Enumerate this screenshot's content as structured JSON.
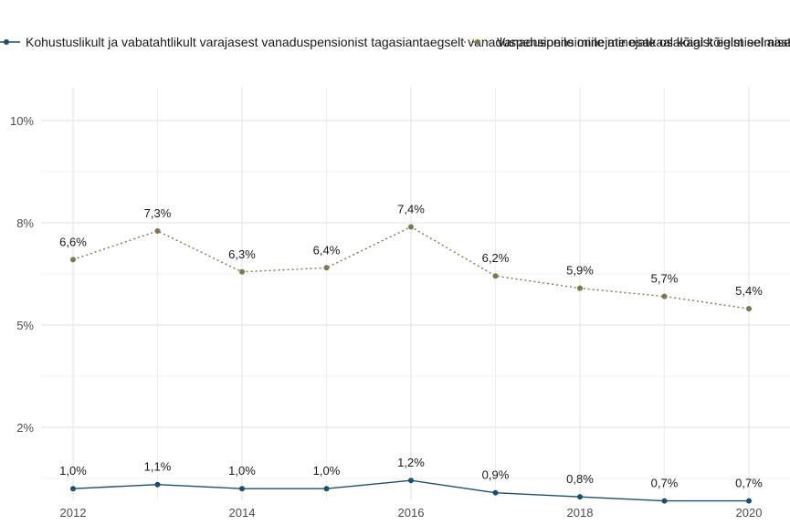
{
  "legend": {
    "series1_label": "Kohustuslikult ja vabatahtlikult varajasest vanaduspensionist tagasiantaegselt vanaduspensionile minejate osakaal kõigist eelmisel aastal VTI-dest",
    "series2_label": "Vanaduspensionile minejate osakaal kõigist eelmisel aastal VTI-dest"
  },
  "colors": {
    "series1": "#1f4e6b",
    "series2": "#7a7a4e",
    "grid": "#ebebeb"
  },
  "chart_data": {
    "type": "line",
    "title": "",
    "xlabel": "",
    "ylabel": "",
    "x": [
      2012,
      2013,
      2014,
      2015,
      2016,
      2017,
      2018,
      2019,
      2020
    ],
    "x_ticks": [
      2012,
      2014,
      2016,
      2018,
      2020
    ],
    "x_tick_labels": [
      "2012",
      "2014",
      "2016",
      "2018",
      "2020"
    ],
    "ylim": [
      0,
      10.5
    ],
    "y_ticks": [
      2.5,
      5,
      7.5,
      10
    ],
    "y_tick_labels": [
      "2%",
      "5%",
      "8%",
      "10%"
    ],
    "grid": true,
    "legend_position": "top",
    "series": [
      {
        "name": "Kohustuslikult ja vabatahtlikult varajasest vanaduspensionist tagasiantaegselt vanaduspensionile minejate osakaal kõigist eelmisel aastal VTI-dest",
        "style": "solid",
        "values": [
          1.0,
          1.1,
          1.0,
          1.0,
          1.2,
          0.9,
          0.8,
          0.7,
          0.7
        ],
        "labels": [
          "1,0%",
          "1,1%",
          "1,0%",
          "1,0%",
          "1,2%",
          "0,9%",
          "0,8%",
          "0,7%",
          "0,7%"
        ]
      },
      {
        "name": "Vanaduspensionile minejate osakaal kõigist eelmisel aastal VTI-dest",
        "style": "dotted",
        "values": [
          6.6,
          7.3,
          6.3,
          6.4,
          7.4,
          6.2,
          5.9,
          5.7,
          5.4
        ],
        "labels": [
          "6,6%",
          "7,3%",
          "6,3%",
          "6,4%",
          "7,4%",
          "6,2%",
          "5,9%",
          "5,7%",
          "5,4%"
        ]
      }
    ]
  }
}
